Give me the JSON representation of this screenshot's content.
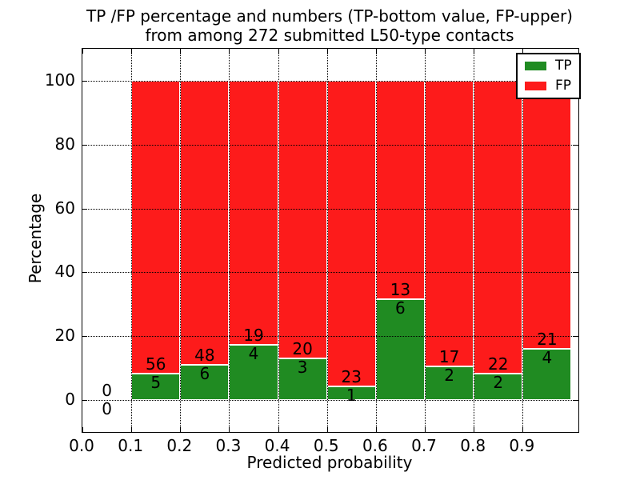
{
  "figure": {
    "title_line1": "TP /FP percentage and numbers (TP-bottom value, FP-upper)",
    "title_line2": "from among 272 submitted L50-type contacts",
    "xlabel": "Predicted probability",
    "ylabel": "Percentage"
  },
  "legend": {
    "position": "upper right",
    "items": [
      {
        "label": "TP",
        "color": "#208b22"
      },
      {
        "label": "FP",
        "color": "#fd1b1b"
      }
    ]
  },
  "axes": {
    "x_tick_labels": [
      "0.0",
      "0.1",
      "0.2",
      "0.3",
      "0.4",
      "0.5",
      "0.6",
      "0.7",
      "0.8",
      "0.9"
    ],
    "x_tick_values": [
      0,
      0.1,
      0.2,
      0.3,
      0.4,
      0.5,
      0.6,
      0.7,
      0.8,
      0.9
    ],
    "y_tick_labels": [
      "0",
      "20",
      "40",
      "60",
      "80",
      "100"
    ],
    "y_tick_values": [
      0,
      20,
      40,
      60,
      80,
      100
    ]
  },
  "chart_data": {
    "type": "bar",
    "stacked": true,
    "title": "TP /FP percentage and numbers (TP-bottom value, FP-upper) from among 272 submitted L50-type contacts",
    "xlabel": "Predicted probability",
    "ylabel": "Percentage",
    "xlim": [
      0.0,
      1.014
    ],
    "ylim": [
      -10,
      110
    ],
    "grid": true,
    "grid_style": "dotted",
    "legend_position": "upper right",
    "total_contacts": 272,
    "bin_width": 0.1,
    "series": [
      {
        "name": "TP",
        "color": "#208b22"
      },
      {
        "name": "FP",
        "color": "#fd1b1b"
      }
    ],
    "bins": [
      {
        "range": [
          0.0,
          0.1
        ],
        "tp": 0,
        "fp": 0,
        "tp_pct": 0.0,
        "fp_pct": 0.0
      },
      {
        "range": [
          0.1,
          0.2
        ],
        "tp": 5,
        "fp": 56,
        "tp_pct": 8.2,
        "fp_pct": 91.8
      },
      {
        "range": [
          0.2,
          0.3
        ],
        "tp": 6,
        "fp": 48,
        "tp_pct": 11.11,
        "fp_pct": 88.89
      },
      {
        "range": [
          0.3,
          0.4
        ],
        "tp": 4,
        "fp": 19,
        "tp_pct": 17.39,
        "fp_pct": 82.61
      },
      {
        "range": [
          0.4,
          0.5
        ],
        "tp": 3,
        "fp": 20,
        "tp_pct": 13.04,
        "fp_pct": 86.96
      },
      {
        "range": [
          0.5,
          0.6
        ],
        "tp": 1,
        "fp": 23,
        "tp_pct": 4.17,
        "fp_pct": 95.83
      },
      {
        "range": [
          0.6,
          0.7
        ],
        "tp": 6,
        "fp": 13,
        "tp_pct": 31.58,
        "fp_pct": 68.42
      },
      {
        "range": [
          0.7,
          0.8
        ],
        "tp": 2,
        "fp": 17,
        "tp_pct": 10.53,
        "fp_pct": 89.47
      },
      {
        "range": [
          0.8,
          0.9
        ],
        "tp": 2,
        "fp": 22,
        "tp_pct": 8.33,
        "fp_pct": 91.67
      },
      {
        "range": [
          0.9,
          1.0
        ],
        "tp": 4,
        "fp": 21,
        "tp_pct": 16.0,
        "fp_pct": 84.0
      }
    ]
  }
}
